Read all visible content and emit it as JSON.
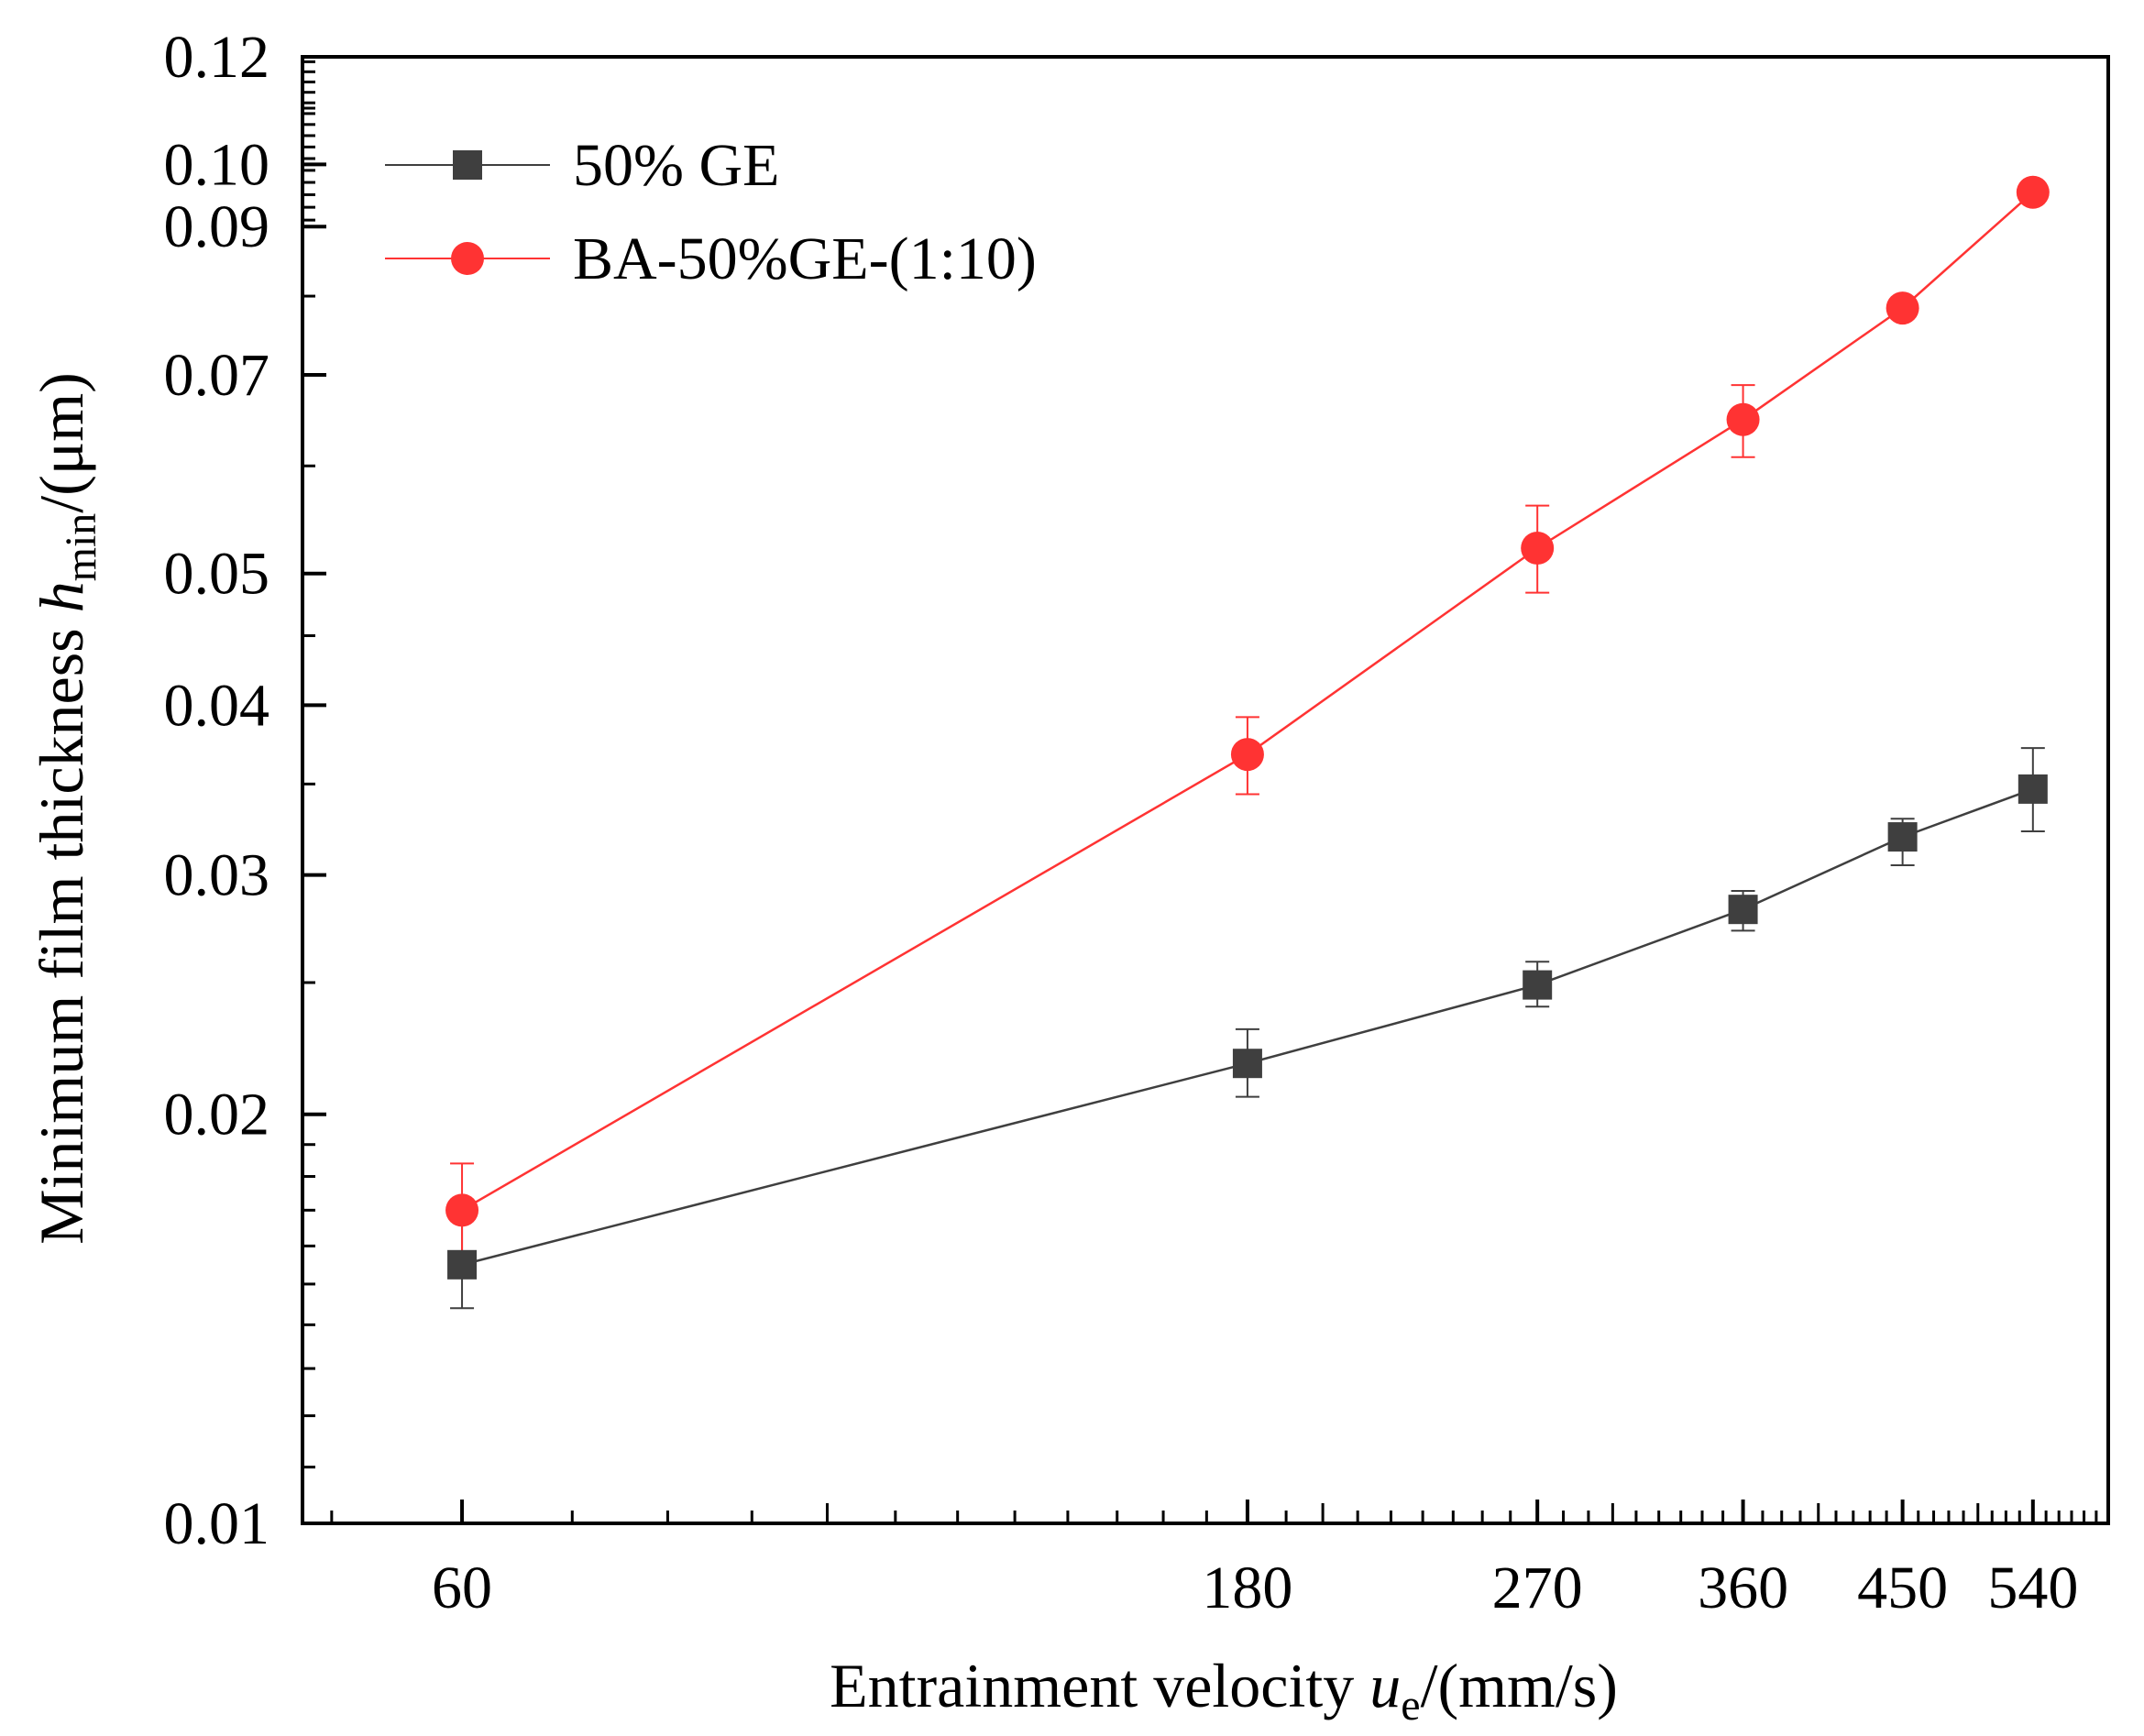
{
  "chart_data": {
    "type": "line",
    "xscale": "log",
    "yscale": "log",
    "xlim": [
      48,
      600
    ],
    "ylim": [
      0.01,
      0.12
    ],
    "xticks": [
      60,
      180,
      270,
      360,
      450,
      540
    ],
    "xtick_labels": [
      "60",
      "180",
      "270",
      "360",
      "450",
      "540"
    ],
    "yticks": [
      0.01,
      0.02,
      0.03,
      0.04,
      0.05,
      0.07,
      0.09,
      0.1,
      0.12
    ],
    "ytick_labels": [
      "0.01",
      "0.02",
      "0.03",
      "0.04",
      "0.05",
      "0.07",
      "0.09",
      "0.10",
      "0.12"
    ],
    "xlabel": {
      "prefix": "Entrainment velocity ",
      "var": "u",
      "sub": "e",
      "suffix": "/(mm/s)"
    },
    "ylabel": {
      "prefix": "Minimum film thickness ",
      "var": "h",
      "sub": "min",
      "suffix": "/(μm)"
    },
    "legend_position": "top-left",
    "series": [
      {
        "name": "50% GE",
        "color": "#3f3f3f",
        "marker": "square",
        "x": [
          60,
          180,
          270,
          360,
          450,
          540
        ],
        "y": [
          0.0155,
          0.0218,
          0.0249,
          0.0283,
          0.032,
          0.0347
        ],
        "err_low": [
          0.0144,
          0.0206,
          0.024,
          0.0273,
          0.0305,
          0.0323
        ],
        "err_high": [
          0.0169,
          0.0231,
          0.0259,
          0.0292,
          0.033,
          0.0372
        ]
      },
      {
        "name": "BA-50%GE-(1:10)",
        "color": "#ff3333",
        "marker": "circle",
        "x": [
          60,
          180,
          270,
          360,
          450,
          540
        ],
        "y": [
          0.017,
          0.0368,
          0.0522,
          0.0649,
          0.0784,
          0.0954
        ],
        "err_low": [
          0.0157,
          0.0344,
          0.0484,
          0.0609,
          0.0784,
          0.0954
        ],
        "err_high": [
          0.0184,
          0.0392,
          0.0561,
          0.0688,
          0.0784,
          0.0954
        ]
      }
    ]
  }
}
